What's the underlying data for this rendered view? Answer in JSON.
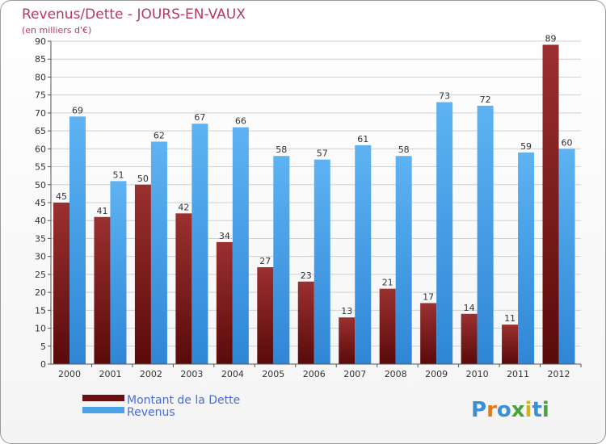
{
  "chart_data": {
    "type": "bar",
    "title": "Revenus/Dette - JOURS-EN-VAUX",
    "subtitle": "(en milliers d'€)",
    "categories": [
      "2000",
      "2001",
      "2002",
      "2003",
      "2004",
      "2005",
      "2006",
      "2007",
      "2008",
      "2009",
      "2010",
      "2011",
      "2012"
    ],
    "series": [
      {
        "name": "Montant de la Dette",
        "values": [
          45,
          41,
          50,
          42,
          34,
          27,
          23,
          13,
          21,
          17,
          14,
          11,
          89
        ],
        "color": "#7b1a1a"
      },
      {
        "name": "Revenus",
        "values": [
          69,
          51,
          62,
          67,
          66,
          58,
          57,
          61,
          58,
          73,
          72,
          59,
          60
        ],
        "color": "#4aa3e8"
      }
    ],
    "yticks": [
      0,
      5,
      10,
      15,
      20,
      25,
      30,
      35,
      40,
      45,
      50,
      55,
      60,
      65,
      70,
      75,
      80,
      85,
      90
    ],
    "ylim": [
      0,
      90
    ],
    "grid": true,
    "legend_position": "bottom-left"
  },
  "branding": {
    "logo_letters": [
      "P",
      "r",
      "o",
      "x",
      "i",
      "t",
      "i"
    ],
    "logo_colors": [
      "#3a8fd6",
      "#e07a1f",
      "#3a8fd6",
      "#4aa33a",
      "#d6b21f",
      "#3a8fd6",
      "#4aa33a"
    ]
  }
}
